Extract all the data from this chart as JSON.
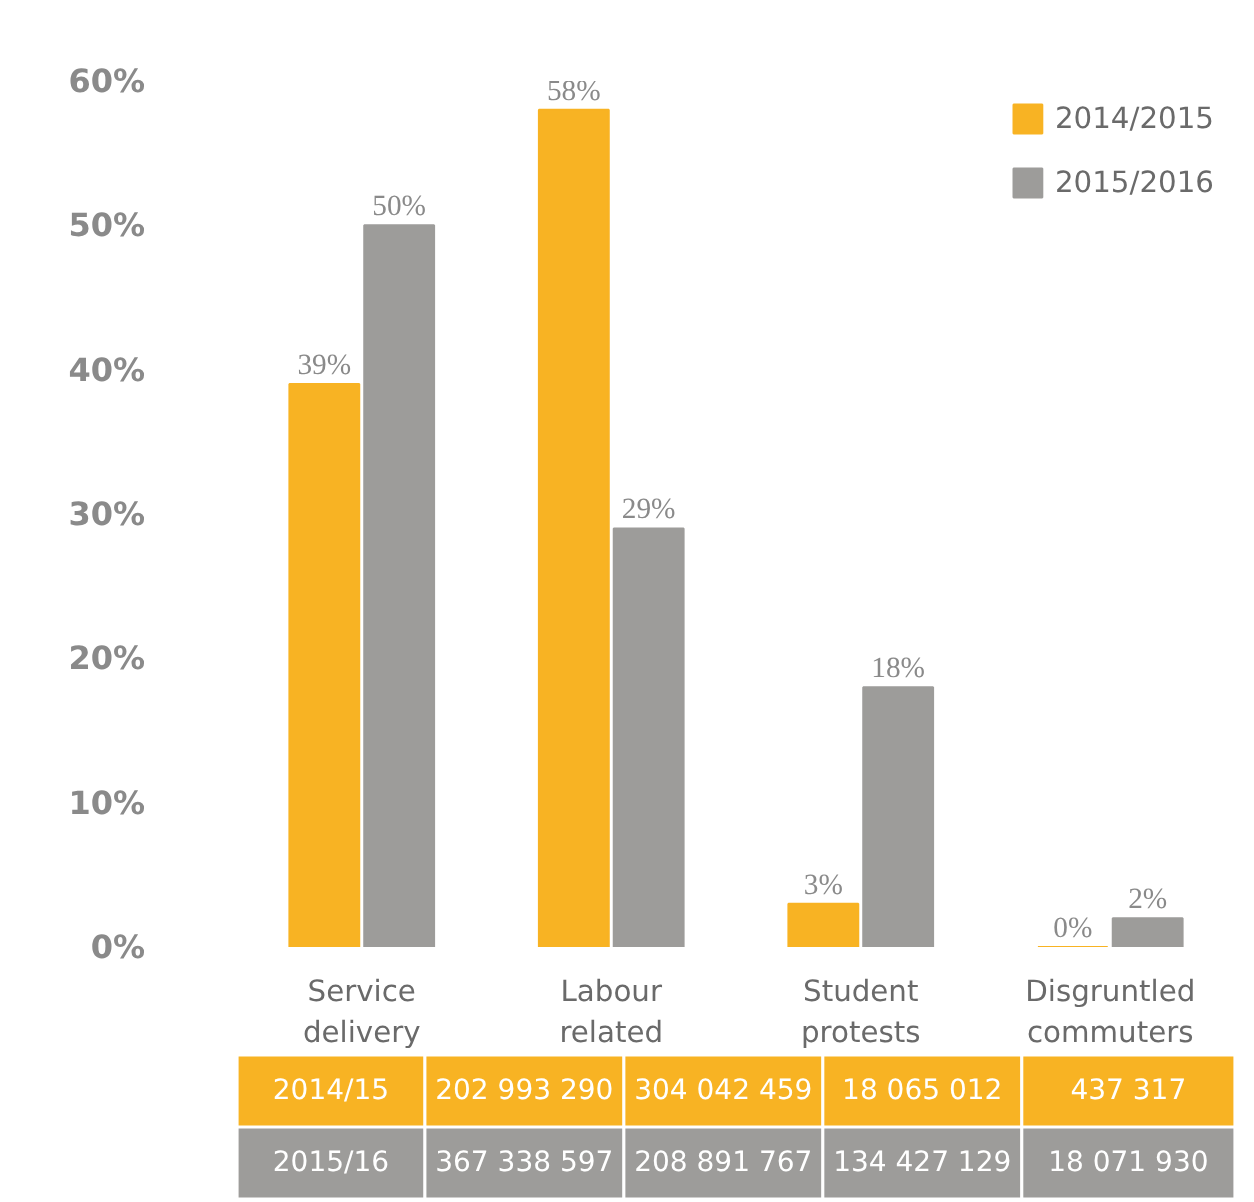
{
  "chart_data": {
    "type": "bar",
    "categories": [
      "Service delivery",
      "Labour related",
      "Student protests",
      "Disgruntled commuters"
    ],
    "series": [
      {
        "name": "2014/2015",
        "color": "#f8b323",
        "values": [
          39,
          58,
          3,
          0
        ],
        "value_labels": [
          "39%",
          "58%",
          "3%",
          "0%"
        ]
      },
      {
        "name": "2015/2016",
        "color": "#9d9c9a",
        "values": [
          50,
          29,
          18,
          2
        ],
        "value_labels": [
          "50%",
          "29%",
          "18%",
          "2%"
        ]
      }
    ],
    "ylim": [
      0,
      60
    ],
    "yticks": [
      {
        "value": 0,
        "label": "0%"
      },
      {
        "value": 10,
        "label": "10%"
      },
      {
        "value": 20,
        "label": "20%"
      },
      {
        "value": 30,
        "label": "30%"
      },
      {
        "value": 40,
        "label": "40%"
      },
      {
        "value": 50,
        "label": "50%"
      },
      {
        "value": 60,
        "label": "60%"
      }
    ],
    "grid": false,
    "legend": "top right",
    "annotations": [
      "2014/15",
      "202 993 290",
      "304 042 459",
      "18 065 012",
      "437 317",
      "2015/16",
      "367 338 597",
      "208 891 767",
      "134 427 129",
      "18 071 930"
    ]
  }
}
